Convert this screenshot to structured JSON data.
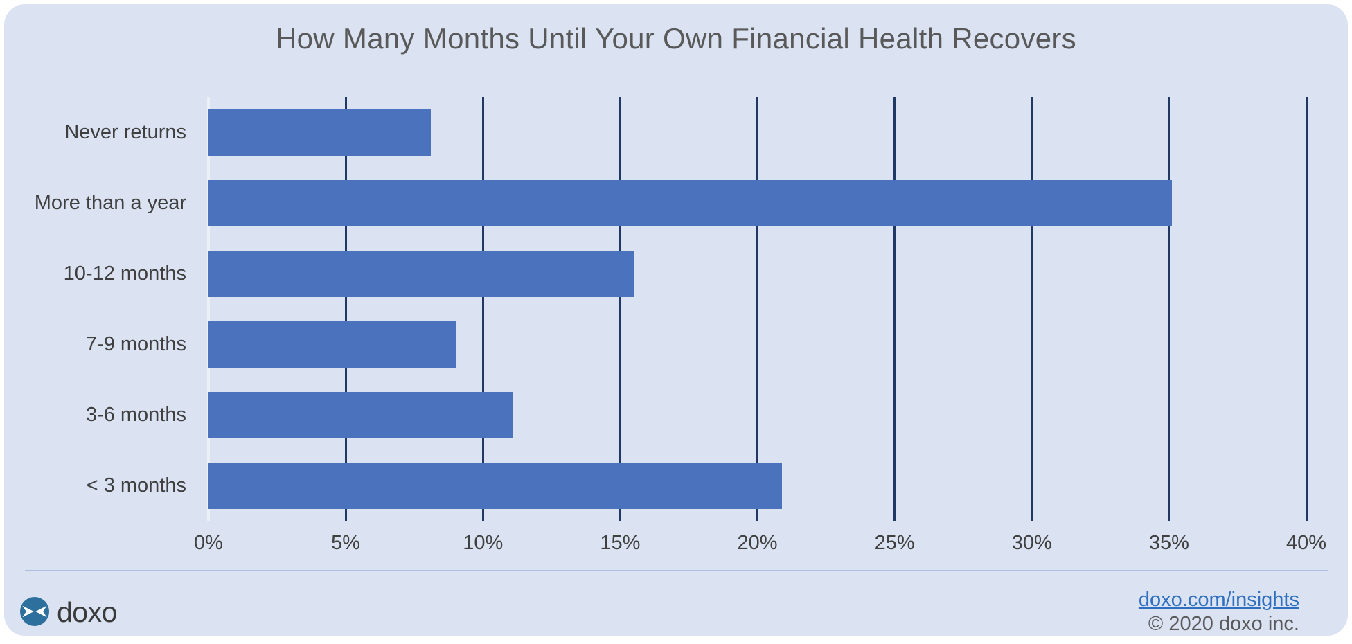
{
  "title": "How Many Months Until Your Own Financial Health Recovers",
  "chart_data": {
    "type": "bar",
    "orientation": "horizontal",
    "title": "How Many Months Until Your Own Financial Health Recovers",
    "categories": [
      "Never returns",
      "More than a year",
      "10-12 months",
      "7-9 months",
      "3-6 months",
      "< 3 months"
    ],
    "values": [
      8.1,
      35.1,
      15.5,
      9.0,
      11.1,
      20.9
    ],
    "value_unit": "percent",
    "xlim": [
      0,
      40
    ],
    "x_tick_values": [
      0,
      5,
      10,
      15,
      20,
      25,
      30,
      35,
      40
    ],
    "x_tick_labels": [
      "0%",
      "5%",
      "10%",
      "15%",
      "20%",
      "25%",
      "30%",
      "35%",
      "40%"
    ],
    "grid": true,
    "legend": false,
    "bar_color": "#4b73bd",
    "gridline_color": "#1f3864",
    "background_color": "#dbe3f3"
  },
  "footer": {
    "brand": "doxo",
    "link_label": "doxo.com/insights",
    "copyright": "© 2020 doxo inc."
  },
  "colors": {
    "panel_bg": "#dbe3f3",
    "bar": "#4b73bd",
    "gridline": "#1f3864",
    "zero_axis": "#eceff6",
    "title_text": "#595959",
    "label_text": "#3f3f3f",
    "link": "#2e6fc0",
    "copyright_text": "#595959",
    "logo_circle": "#2d6f9d"
  }
}
